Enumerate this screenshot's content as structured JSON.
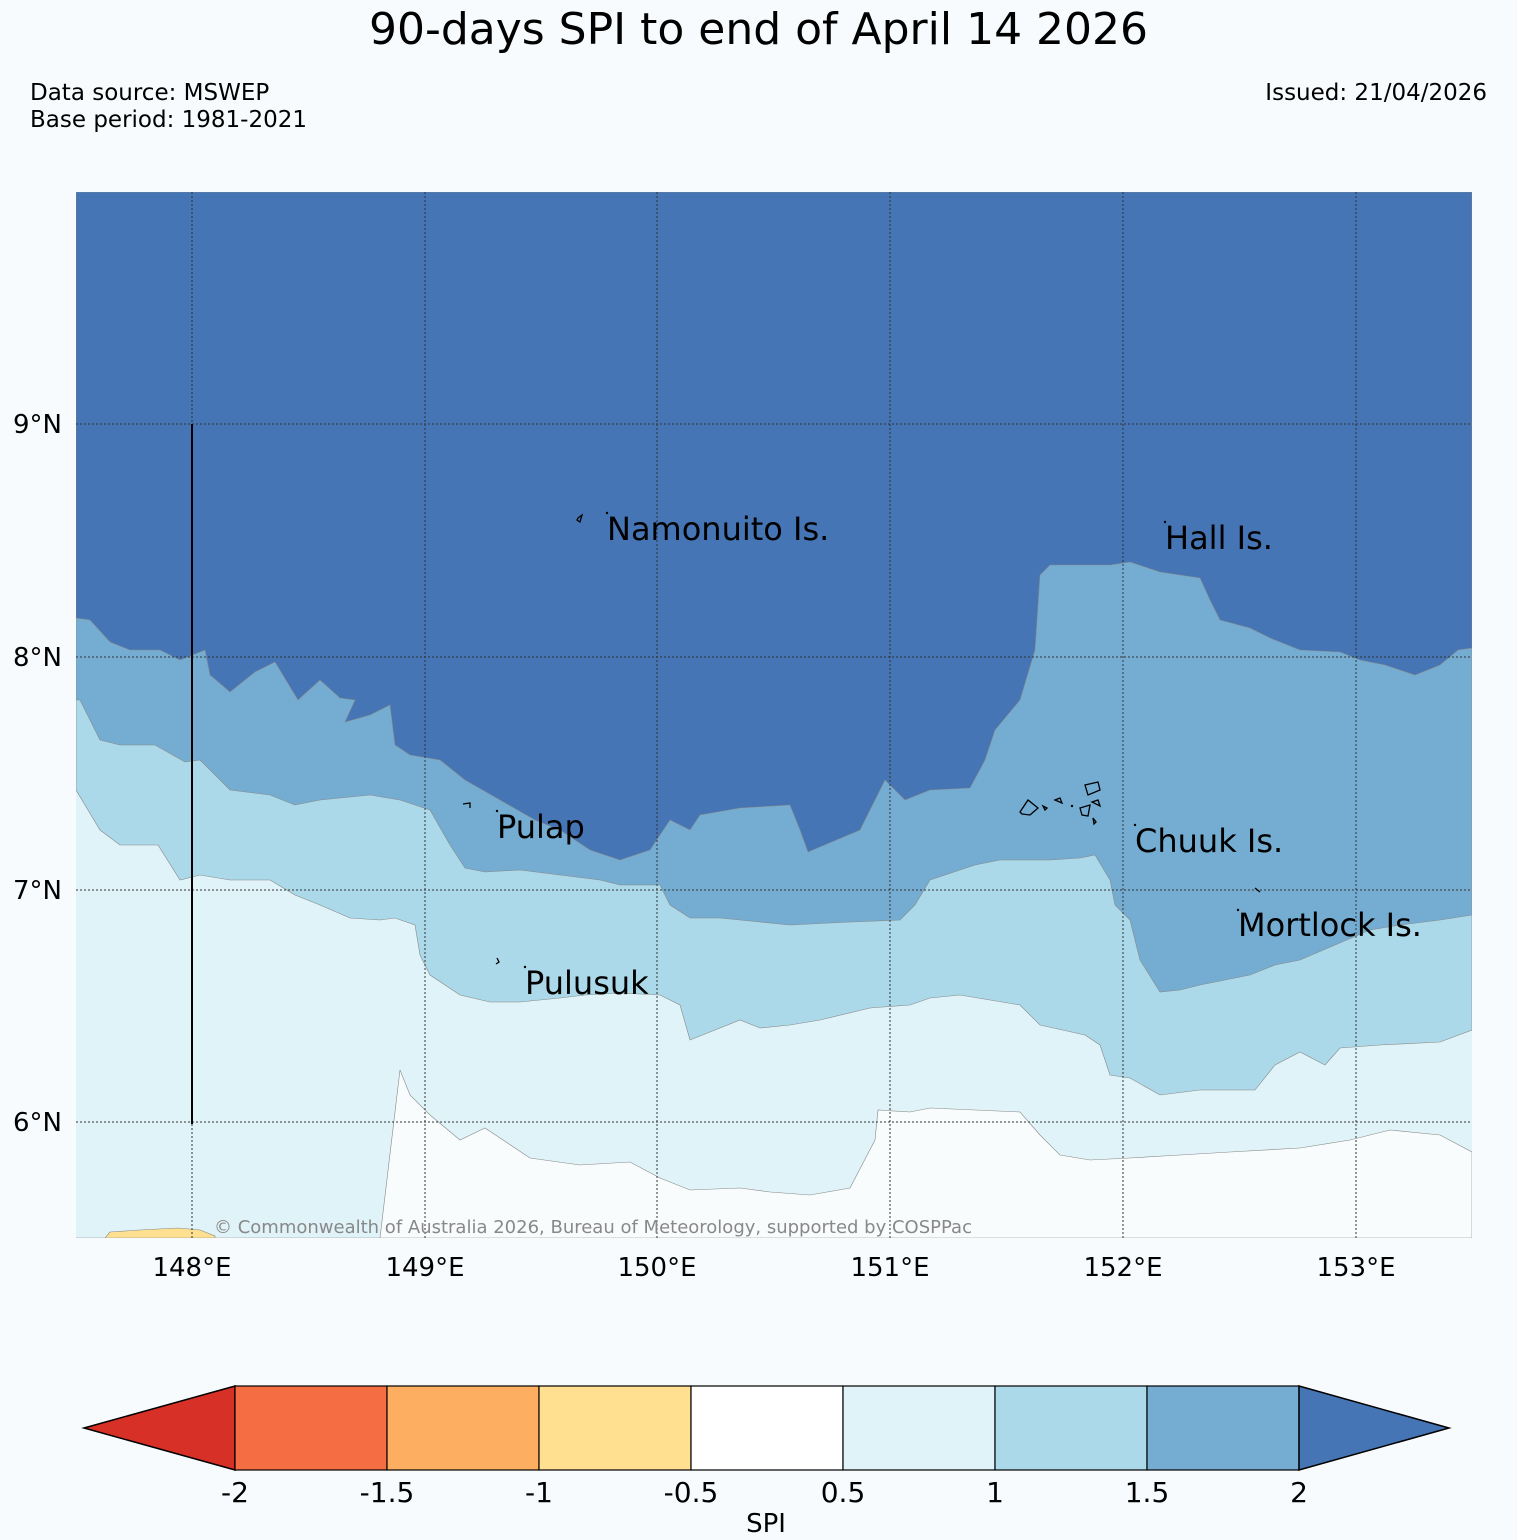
{
  "header": {
    "title": "90-days SPI to end of April 14 2026",
    "data_source": "Data source: MSWEP",
    "base_period": "Base period: 1981-2021",
    "issued": "Issued: 21/04/2026"
  },
  "map": {
    "lat_labels": [
      "9°N",
      "8°N",
      "7°N",
      "6°N"
    ],
    "lon_labels": [
      "148°E",
      "149°E",
      "150°E",
      "151°E",
      "152°E",
      "153°E"
    ],
    "places": [
      "Namonuito Is.",
      "Hall Is.",
      "Pulap",
      "Chuuk Is.",
      "Mortlock Is.",
      "Pulusuk"
    ],
    "copyright": "© Commonwealth of Australia 2026, Bureau of Meteorology, supported by COSPPac"
  },
  "colorbar": {
    "label": "SPI",
    "ticks": [
      "-2",
      "-1.5",
      "-1",
      "-0.5",
      "0.5",
      "1",
      "1.5",
      "2"
    ],
    "colors": [
      "#d73027",
      "#f46d43",
      "#fdae61",
      "#fee090",
      "#ffffff",
      "#e0f3f8",
      "#abd9e9",
      "#74add1",
      "#4575b4"
    ]
  }
}
